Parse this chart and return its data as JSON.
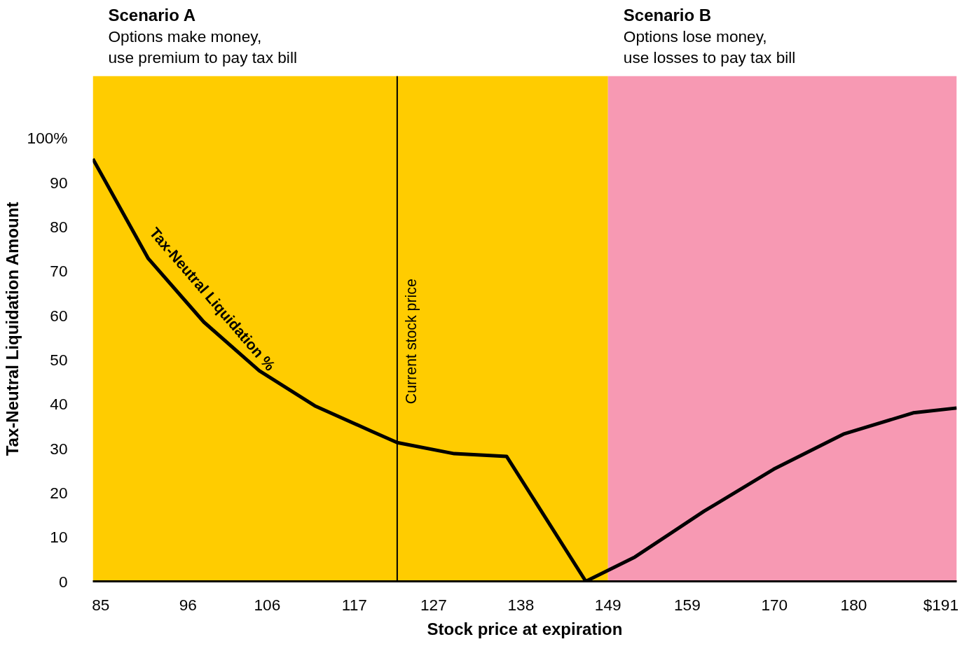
{
  "chart_data": {
    "type": "line",
    "xlabel": "Stock price at expiration",
    "ylabel": "Tax-Neutral Liquidation Amount",
    "xlim": [
      84,
      193
    ],
    "ylim": [
      0,
      114
    ],
    "xticks": [
      85,
      96,
      106,
      117,
      127,
      138,
      149,
      159,
      170,
      180,
      {
        "value": 191,
        "label": "$191"
      }
    ],
    "yticks": [
      0,
      10,
      20,
      30,
      40,
      50,
      60,
      70,
      80,
      90,
      {
        "value": 100,
        "label": "100%"
      }
    ],
    "marker": "none",
    "line_style": "solid",
    "series": [
      {
        "color": "#000000",
        "x": [
          84,
          91,
          98,
          105,
          112,
          119,
          122.4,
          129.6,
          136.2,
          146.2,
          152.4,
          161.1,
          169.9,
          178.7,
          187.5,
          193
        ],
        "values": [
          95.3,
          72.8,
          58.5,
          47.5,
          39.6,
          34.0,
          31.3,
          28.8,
          28.2,
          0,
          5.5,
          15.8,
          25.3,
          33.2,
          38.0,
          39.1
        ]
      }
    ],
    "bands": [
      {
        "axis": "x",
        "from": 84,
        "to": 149,
        "color": "#ffcc00"
      },
      {
        "axis": "x",
        "from": 149,
        "to": 193,
        "color": "#f799b3"
      }
    ],
    "ref_lines": [
      {
        "axis": "x",
        "value": 122.4,
        "label": "Current stock price",
        "color": "#000000"
      }
    ],
    "annotations": [
      "Scenario A",
      "Options make money,",
      "use premium to pay tax bill",
      "Scenario B",
      "Options lose money,",
      "use losses to pay tax bill",
      "Tax-Neutral Liquidation %"
    ]
  }
}
